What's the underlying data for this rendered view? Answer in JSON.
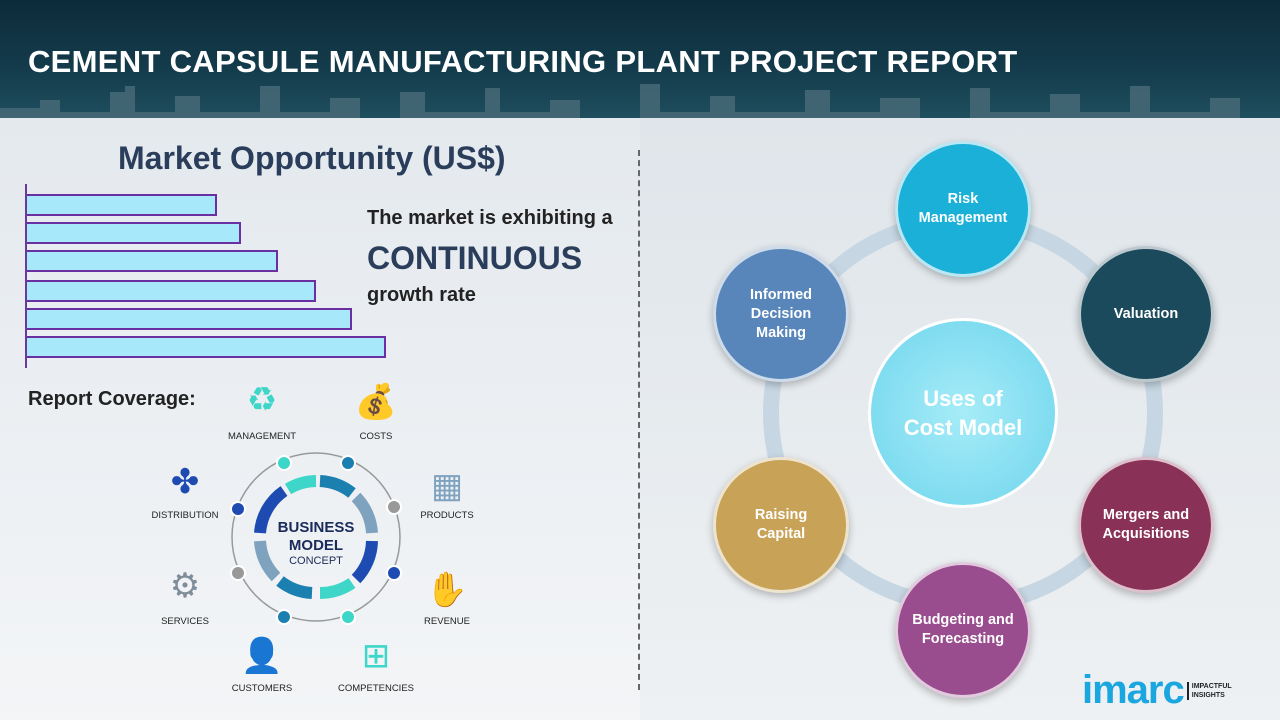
{
  "header": {
    "title": "CEMENT CAPSULE MANUFACTURING PLANT PROJECT REPORT"
  },
  "market": {
    "title": "Market Opportunity (US$)",
    "line1": "The market is exhibiting a",
    "line2": "CONTINUOUS",
    "line3": "growth rate",
    "bar_color": "#a8e8fb",
    "bar_border": "#6a2fa0"
  },
  "chart_data": {
    "type": "bar",
    "orientation": "horizontal",
    "values": [
      190,
      214,
      251,
      289,
      325,
      359
    ],
    "title": "Market Opportunity (US$)"
  },
  "coverage": {
    "title": "Report Coverage:",
    "center_line1": "BUSINESS",
    "center_line2": "MODEL",
    "center_line3": "CONCEPT",
    "items": [
      {
        "label": "MANAGEMENT",
        "icon": "lightbulb-cycle-icon"
      },
      {
        "label": "COSTS",
        "icon": "money-bag-icon"
      },
      {
        "label": "DISTRIBUTION",
        "icon": "network-icon"
      },
      {
        "label": "PRODUCTS",
        "icon": "box-icon"
      },
      {
        "label": "SERVICES",
        "icon": "gears-icon"
      },
      {
        "label": "REVENUE",
        "icon": "hand-coins-icon"
      },
      {
        "label": "CUSTOMERS",
        "icon": "user-icon"
      },
      {
        "label": "COMPETENCIES",
        "icon": "hierarchy-icon"
      }
    ]
  },
  "uses": {
    "center": "Uses of Cost Model",
    "items": [
      {
        "label": "Risk Management",
        "color": "#1ab0d8"
      },
      {
        "label": "Valuation",
        "color": "#1c4a5d"
      },
      {
        "label": "Mergers and Acquisitions",
        "color": "#8a3157"
      },
      {
        "label": "Budgeting and Forecasting",
        "color": "#9a4d8e"
      },
      {
        "label": "Raising Capital",
        "color": "#c7a257"
      },
      {
        "label": "Informed Decision Making",
        "color": "#5886ba"
      }
    ]
  },
  "logo": {
    "word": "imarc",
    "tag1": "IMPACTFUL",
    "tag2": "INSIGHTS"
  }
}
